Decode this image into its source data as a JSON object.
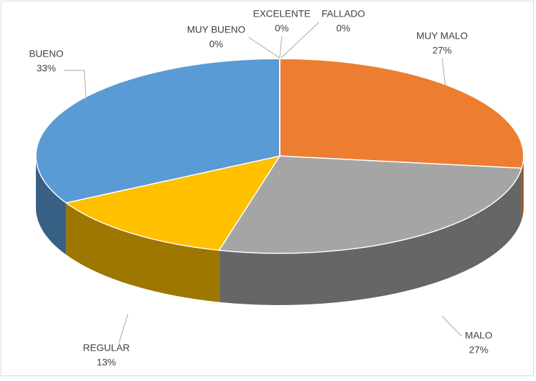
{
  "chart_data": {
    "type": "pie3d",
    "categories": [
      "MUY MALO",
      "MALO",
      "REGULAR",
      "BUENO",
      "MUY BUENO",
      "EXCELENTE",
      "FALLADO"
    ],
    "values": [
      27,
      27,
      13,
      33,
      0,
      0,
      0
    ],
    "value_labels": [
      "27%",
      "27%",
      "13%",
      "33%",
      "0%",
      "0%",
      "0%"
    ],
    "colors": [
      "#ed7d31",
      "#a5a5a5",
      "#ffc000",
      "#5b9bd5",
      "#4472c4",
      "#70ad47",
      "#264478"
    ]
  }
}
